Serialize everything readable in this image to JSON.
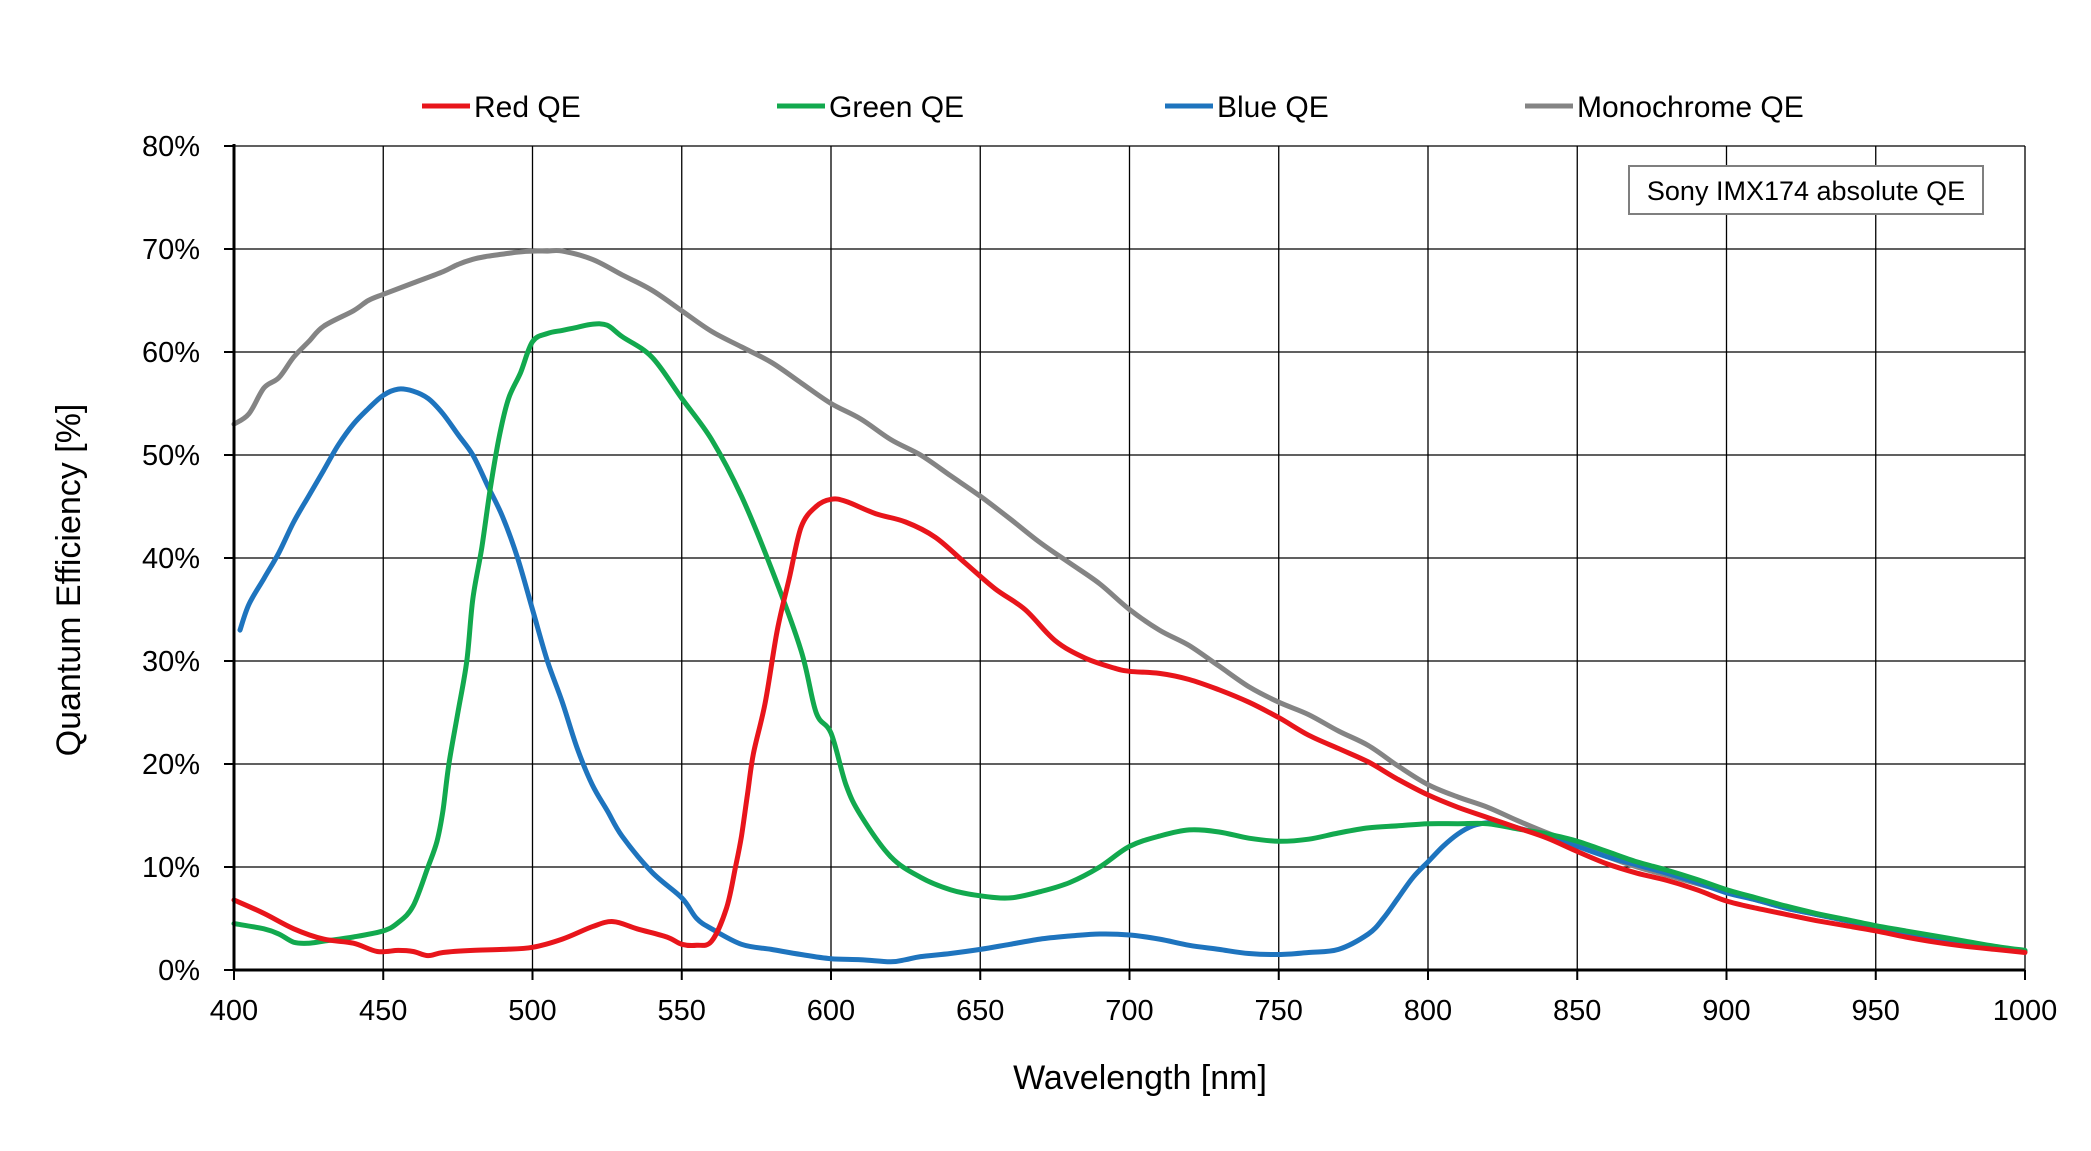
{
  "chart_data": {
    "type": "line",
    "title": "",
    "xlabel": "Wavelength [nm]",
    "ylabel": "Quantum Efficiency [%]",
    "xlim": [
      400,
      1000
    ],
    "ylim": [
      0,
      80
    ],
    "xticks": [
      400,
      450,
      500,
      550,
      600,
      650,
      700,
      750,
      800,
      850,
      900,
      950,
      1000
    ],
    "yticks": [
      0,
      10,
      20,
      30,
      40,
      50,
      60,
      70,
      80
    ],
    "ytick_labels": [
      "0%",
      "10%",
      "20%",
      "30%",
      "40%",
      "50%",
      "60%",
      "70%",
      "80%"
    ],
    "grid": true,
    "legend_position": "top",
    "annotation": "Sony IMX174 absolute QE",
    "series": [
      {
        "name": "Red QE",
        "color": "#e8151b",
        "points": [
          [
            400,
            6.8
          ],
          [
            410,
            5.5
          ],
          [
            420,
            4.0
          ],
          [
            430,
            3.0
          ],
          [
            440,
            2.6
          ],
          [
            448,
            1.8
          ],
          [
            455,
            1.9
          ],
          [
            460,
            1.8
          ],
          [
            465,
            1.4
          ],
          [
            470,
            1.7
          ],
          [
            480,
            1.9
          ],
          [
            490,
            2.0
          ],
          [
            500,
            2.2
          ],
          [
            510,
            3.0
          ],
          [
            520,
            4.2
          ],
          [
            527,
            4.7
          ],
          [
            535,
            4.0
          ],
          [
            545,
            3.2
          ],
          [
            550,
            2.5
          ],
          [
            555,
            2.4
          ],
          [
            560,
            2.8
          ],
          [
            565,
            6.0
          ],
          [
            568,
            10.0
          ],
          [
            570,
            13.0
          ],
          [
            572,
            17.0
          ],
          [
            574,
            21.0
          ],
          [
            578,
            26.0
          ],
          [
            582,
            33.0
          ],
          [
            586,
            38.0
          ],
          [
            590,
            43.0
          ],
          [
            595,
            45.0
          ],
          [
            600,
            45.7
          ],
          [
            605,
            45.5
          ],
          [
            615,
            44.3
          ],
          [
            625,
            43.5
          ],
          [
            635,
            42.0
          ],
          [
            645,
            39.5
          ],
          [
            655,
            37.0
          ],
          [
            665,
            35.0
          ],
          [
            675,
            32.0
          ],
          [
            685,
            30.3
          ],
          [
            695,
            29.3
          ],
          [
            700,
            29.0
          ],
          [
            710,
            28.8
          ],
          [
            720,
            28.2
          ],
          [
            730,
            27.2
          ],
          [
            740,
            26.0
          ],
          [
            750,
            24.5
          ],
          [
            760,
            22.8
          ],
          [
            770,
            21.5
          ],
          [
            780,
            20.2
          ],
          [
            790,
            18.5
          ],
          [
            800,
            17.0
          ],
          [
            810,
            15.8
          ],
          [
            820,
            14.8
          ],
          [
            830,
            13.8
          ],
          [
            840,
            12.8
          ],
          [
            850,
            11.5
          ],
          [
            860,
            10.3
          ],
          [
            870,
            9.4
          ],
          [
            880,
            8.7
          ],
          [
            890,
            7.8
          ],
          [
            900,
            6.7
          ],
          [
            910,
            6.0
          ],
          [
            920,
            5.4
          ],
          [
            930,
            4.8
          ],
          [
            940,
            4.3
          ],
          [
            950,
            3.8
          ],
          [
            960,
            3.2
          ],
          [
            970,
            2.7
          ],
          [
            980,
            2.3
          ],
          [
            990,
            2.0
          ],
          [
            1000,
            1.7
          ]
        ]
      },
      {
        "name": "Green QE",
        "color": "#12a94e",
        "points": [
          [
            400,
            4.5
          ],
          [
            410,
            4.0
          ],
          [
            415,
            3.5
          ],
          [
            420,
            2.7
          ],
          [
            425,
            2.6
          ],
          [
            430,
            2.8
          ],
          [
            440,
            3.2
          ],
          [
            450,
            3.8
          ],
          [
            455,
            4.6
          ],
          [
            460,
            6.2
          ],
          [
            465,
            10.0
          ],
          [
            468,
            12.5
          ],
          [
            470,
            15.5
          ],
          [
            472,
            20.0
          ],
          [
            475,
            25.0
          ],
          [
            478,
            30.0
          ],
          [
            480,
            36.0
          ],
          [
            483,
            41.0
          ],
          [
            486,
            47.0
          ],
          [
            489,
            52.0
          ],
          [
            492,
            55.5
          ],
          [
            496,
            58.0
          ],
          [
            500,
            61.0
          ],
          [
            505,
            61.8
          ],
          [
            510,
            62.1
          ],
          [
            515,
            62.4
          ],
          [
            520,
            62.7
          ],
          [
            525,
            62.6
          ],
          [
            530,
            61.5
          ],
          [
            540,
            59.5
          ],
          [
            550,
            55.5
          ],
          [
            560,
            51.5
          ],
          [
            570,
            46.0
          ],
          [
            580,
            39.0
          ],
          [
            590,
            31.0
          ],
          [
            595,
            25.0
          ],
          [
            600,
            23.0
          ],
          [
            605,
            18.0
          ],
          [
            610,
            15.0
          ],
          [
            620,
            11.0
          ],
          [
            630,
            9.0
          ],
          [
            640,
            7.8
          ],
          [
            650,
            7.2
          ],
          [
            660,
            7.0
          ],
          [
            670,
            7.6
          ],
          [
            680,
            8.5
          ],
          [
            690,
            10.0
          ],
          [
            700,
            12.0
          ],
          [
            710,
            13.0
          ],
          [
            720,
            13.6
          ],
          [
            730,
            13.4
          ],
          [
            740,
            12.8
          ],
          [
            750,
            12.5
          ],
          [
            760,
            12.7
          ],
          [
            770,
            13.3
          ],
          [
            780,
            13.8
          ],
          [
            790,
            14.0
          ],
          [
            800,
            14.2
          ],
          [
            810,
            14.2
          ],
          [
            820,
            14.2
          ],
          [
            830,
            13.7
          ],
          [
            840,
            13.2
          ],
          [
            850,
            12.5
          ],
          [
            860,
            11.5
          ],
          [
            870,
            10.5
          ],
          [
            880,
            9.7
          ],
          [
            890,
            8.8
          ],
          [
            900,
            7.8
          ],
          [
            910,
            7.0
          ],
          [
            920,
            6.2
          ],
          [
            930,
            5.5
          ],
          [
            940,
            4.9
          ],
          [
            950,
            4.3
          ],
          [
            960,
            3.8
          ],
          [
            970,
            3.3
          ],
          [
            980,
            2.8
          ],
          [
            990,
            2.3
          ],
          [
            1000,
            1.9
          ]
        ]
      },
      {
        "name": "Blue QE",
        "color": "#1e74be",
        "points": [
          [
            402,
            33.0
          ],
          [
            405,
            35.5
          ],
          [
            410,
            38.0
          ],
          [
            415,
            40.5
          ],
          [
            420,
            43.5
          ],
          [
            425,
            46.0
          ],
          [
            430,
            48.5
          ],
          [
            435,
            51.0
          ],
          [
            440,
            53.0
          ],
          [
            445,
            54.5
          ],
          [
            450,
            55.8
          ],
          [
            455,
            56.4
          ],
          [
            460,
            56.2
          ],
          [
            465,
            55.5
          ],
          [
            470,
            54.0
          ],
          [
            475,
            52.0
          ],
          [
            480,
            50.0
          ],
          [
            485,
            47.0
          ],
          [
            490,
            44.0
          ],
          [
            495,
            40.0
          ],
          [
            500,
            35.0
          ],
          [
            505,
            30.0
          ],
          [
            510,
            26.0
          ],
          [
            515,
            21.5
          ],
          [
            520,
            18.0
          ],
          [
            525,
            15.5
          ],
          [
            530,
            13.0
          ],
          [
            540,
            9.5
          ],
          [
            550,
            7.0
          ],
          [
            555,
            5.0
          ],
          [
            560,
            4.0
          ],
          [
            570,
            2.5
          ],
          [
            580,
            2.0
          ],
          [
            590,
            1.5
          ],
          [
            600,
            1.1
          ],
          [
            610,
            1.0
          ],
          [
            620,
            0.8
          ],
          [
            625,
            1.0
          ],
          [
            630,
            1.3
          ],
          [
            640,
            1.6
          ],
          [
            650,
            2.0
          ],
          [
            660,
            2.5
          ],
          [
            670,
            3.0
          ],
          [
            680,
            3.3
          ],
          [
            690,
            3.5
          ],
          [
            700,
            3.4
          ],
          [
            710,
            3.0
          ],
          [
            720,
            2.4
          ],
          [
            730,
            2.0
          ],
          [
            740,
            1.6
          ],
          [
            750,
            1.5
          ],
          [
            760,
            1.7
          ],
          [
            770,
            2.0
          ],
          [
            780,
            3.5
          ],
          [
            785,
            5.0
          ],
          [
            790,
            7.0
          ],
          [
            795,
            9.0
          ],
          [
            800,
            10.5
          ],
          [
            805,
            12.0
          ],
          [
            810,
            13.2
          ],
          [
            815,
            14.0
          ],
          [
            820,
            14.3
          ],
          [
            825,
            14.2
          ],
          [
            830,
            13.8
          ],
          [
            840,
            13.0
          ],
          [
            850,
            12.0
          ],
          [
            860,
            11.0
          ],
          [
            870,
            10.2
          ],
          [
            880,
            9.4
          ],
          [
            890,
            8.5
          ],
          [
            900,
            7.5
          ],
          [
            910,
            6.8
          ],
          [
            920,
            6.0
          ],
          [
            930,
            5.4
          ],
          [
            940,
            4.8
          ],
          [
            950,
            4.2
          ],
          [
            960,
            3.6
          ],
          [
            970,
            3.1
          ],
          [
            980,
            2.6
          ],
          [
            990,
            2.2
          ],
          [
            1000,
            1.8
          ]
        ]
      },
      {
        "name": "Monochrome QE",
        "color": "#848484",
        "points": [
          [
            400,
            53.0
          ],
          [
            405,
            54.0
          ],
          [
            410,
            56.5
          ],
          [
            415,
            57.5
          ],
          [
            420,
            59.5
          ],
          [
            425,
            61.0
          ],
          [
            430,
            62.5
          ],
          [
            440,
            64.0
          ],
          [
            445,
            65.0
          ],
          [
            450,
            65.6
          ],
          [
            460,
            66.7
          ],
          [
            470,
            67.8
          ],
          [
            475,
            68.5
          ],
          [
            480,
            69.0
          ],
          [
            485,
            69.3
          ],
          [
            490,
            69.5
          ],
          [
            495,
            69.7
          ],
          [
            500,
            69.8
          ],
          [
            505,
            69.8
          ],
          [
            510,
            69.8
          ],
          [
            520,
            69.0
          ],
          [
            530,
            67.5
          ],
          [
            540,
            66.0
          ],
          [
            550,
            64.0
          ],
          [
            560,
            62.0
          ],
          [
            570,
            60.5
          ],
          [
            580,
            59.0
          ],
          [
            590,
            57.0
          ],
          [
            600,
            55.0
          ],
          [
            610,
            53.5
          ],
          [
            620,
            51.5
          ],
          [
            630,
            50.0
          ],
          [
            640,
            48.0
          ],
          [
            650,
            46.0
          ],
          [
            660,
            43.8
          ],
          [
            670,
            41.5
          ],
          [
            680,
            39.5
          ],
          [
            690,
            37.5
          ],
          [
            700,
            35.0
          ],
          [
            710,
            33.0
          ],
          [
            720,
            31.5
          ],
          [
            730,
            29.5
          ],
          [
            740,
            27.5
          ],
          [
            750,
            26.0
          ],
          [
            760,
            24.8
          ],
          [
            770,
            23.2
          ],
          [
            780,
            21.8
          ],
          [
            790,
            19.8
          ],
          [
            800,
            18.0
          ],
          [
            810,
            16.8
          ],
          [
            820,
            15.8
          ],
          [
            830,
            14.5
          ],
          [
            840,
            13.3
          ],
          [
            850,
            12.2
          ],
          [
            860,
            11.0
          ],
          [
            870,
            10.0
          ],
          [
            880,
            9.2
          ],
          [
            890,
            8.4
          ],
          [
            900,
            7.6
          ],
          [
            910,
            6.8
          ],
          [
            920,
            6.0
          ],
          [
            930,
            5.4
          ],
          [
            940,
            4.8
          ],
          [
            950,
            4.2
          ],
          [
            960,
            3.6
          ],
          [
            970,
            3.0
          ],
          [
            980,
            2.5
          ],
          [
            990,
            2.1
          ],
          [
            1000,
            1.8
          ]
        ]
      }
    ]
  }
}
